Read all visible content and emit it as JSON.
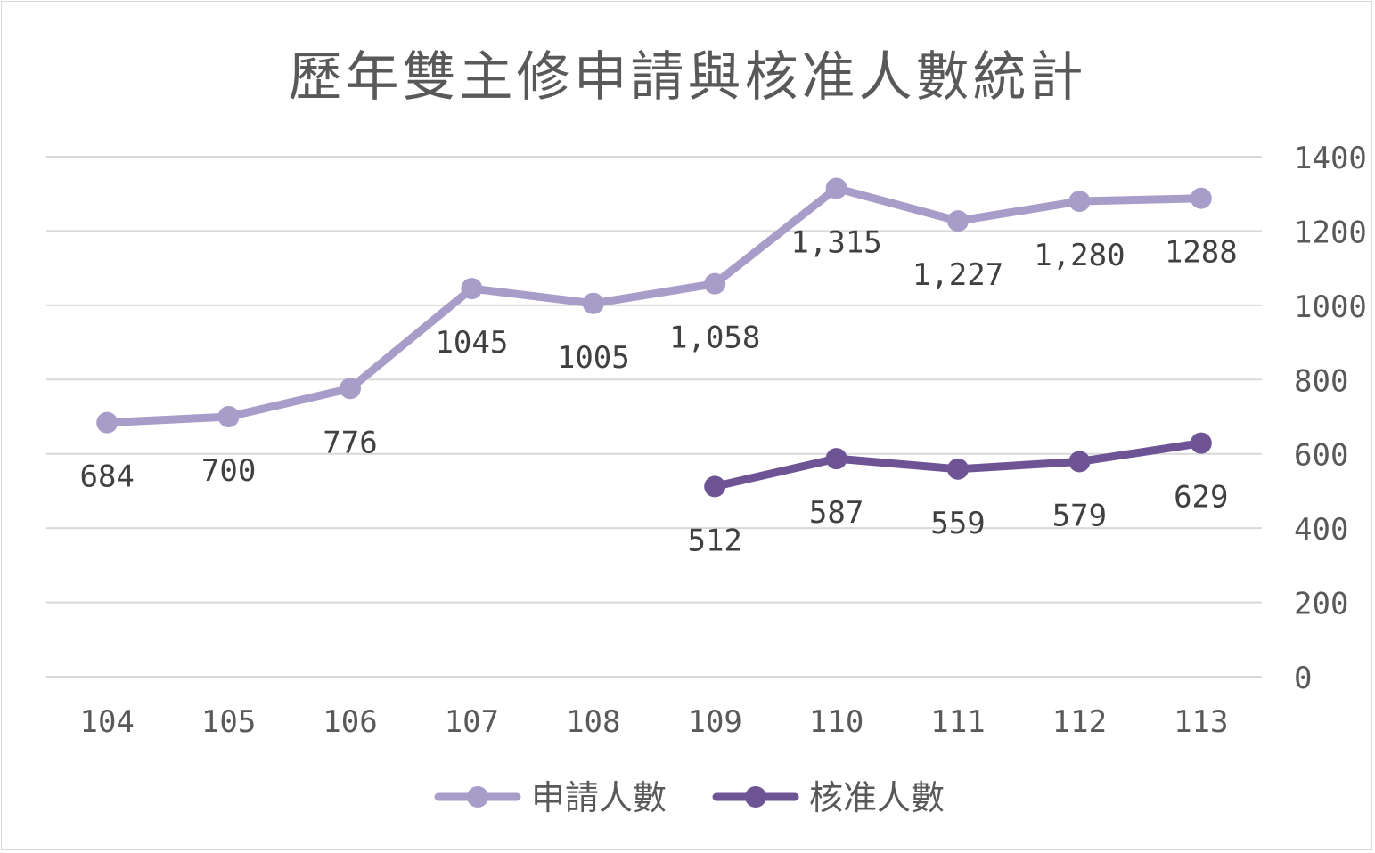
{
  "chart_data": {
    "type": "line",
    "title": "歷年雙主修申請與核准人數統計",
    "categories": [
      "104",
      "105",
      "106",
      "107",
      "108",
      "109",
      "110",
      "111",
      "112",
      "113"
    ],
    "y_axis": {
      "position": "right",
      "min": 0,
      "max": 1400,
      "step": 200,
      "ticks": [
        "1400",
        "1200",
        "1000",
        "800",
        "600",
        "400",
        "200",
        "0"
      ]
    },
    "grid": true,
    "legend": "bottom",
    "series": [
      {
        "name": "申請人數",
        "color": "#a89cc8",
        "values": [
          684,
          700,
          776,
          1045,
          1005,
          1058,
          1315,
          1227,
          1280,
          1288
        ],
        "labels": [
          "684",
          "700",
          "776",
          "1045",
          "1005",
          "1,058",
          "1,315",
          "1,227",
          "1,280",
          "1288"
        ]
      },
      {
        "name": "核准人數",
        "color": "#6e5494",
        "values": [
          null,
          null,
          null,
          null,
          null,
          512,
          587,
          559,
          579,
          629
        ],
        "labels": [
          "",
          "",
          "",
          "",
          "",
          "512",
          "587",
          "559",
          "579",
          "629"
        ]
      }
    ]
  }
}
